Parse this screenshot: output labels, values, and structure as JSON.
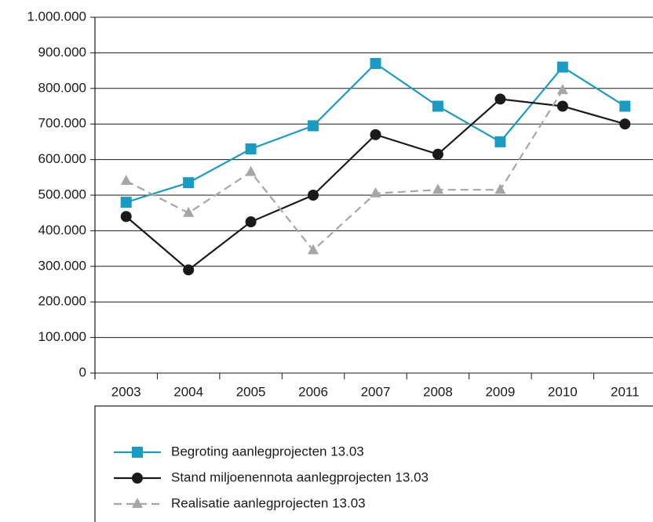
{
  "chart_data": {
    "type": "line",
    "categories": [
      "2003",
      "2004",
      "2005",
      "2006",
      "2007",
      "2008",
      "2009",
      "2010",
      "2011"
    ],
    "series": [
      {
        "name": "Begroting aanlegprojecten 13.03",
        "color": "#1a9bc4",
        "marker": "square",
        "dashed": false,
        "values": [
          480000,
          535000,
          630000,
          695000,
          870000,
          750000,
          650000,
          860000,
          750000
        ]
      },
      {
        "name": "Stand miljoenennota aanlegprojecten 13.03",
        "color": "#1a1a1a",
        "marker": "circle",
        "dashed": false,
        "values": [
          440000,
          290000,
          425000,
          500000,
          670000,
          615000,
          770000,
          750000,
          700000
        ]
      },
      {
        "name": "Realisatie aanlegprojecten 13.03",
        "color": "#a6a6a6",
        "marker": "triangle",
        "dashed": true,
        "values": [
          540000,
          450000,
          565000,
          345000,
          505000,
          515000,
          515000,
          795000,
          null
        ]
      }
    ],
    "ylim": [
      0,
      1000000
    ],
    "yticks": [
      0,
      {
        "value": 100000,
        "label": "100.000"
      },
      {
        "value": 200000,
        "label": "200.000"
      },
      {
        "value": 300000,
        "label": "300.000"
      },
      {
        "value": 400000,
        "label": "400.000"
      },
      {
        "value": 500000,
        "label": "500.000"
      },
      {
        "value": 600000,
        "label": "600.000"
      },
      {
        "value": 700000,
        "label": "700.000"
      },
      {
        "value": 800000,
        "label": "800.000"
      },
      {
        "value": 900000,
        "label": "900.000"
      },
      {
        "value": 1000000,
        "label": "1.000.000"
      }
    ],
    "grid": true,
    "legend": "bottom"
  }
}
